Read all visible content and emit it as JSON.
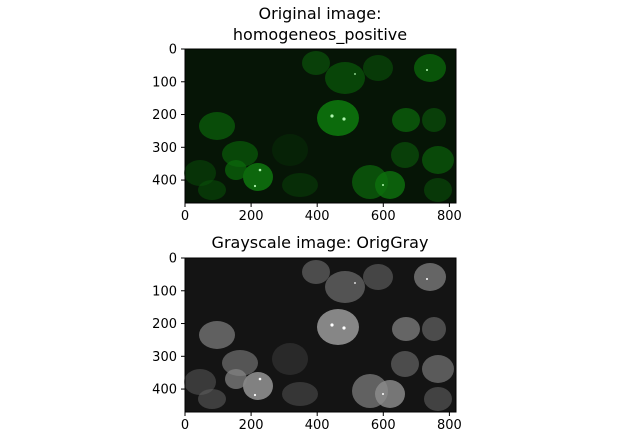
{
  "chart_data": [
    {
      "type": "image",
      "title_lines": [
        "Original image:",
        "homogeneos_positive"
      ],
      "colormap": "green",
      "image_size": [
        820,
        470
      ],
      "xlim": [
        0,
        820
      ],
      "ylim": [
        470,
        0
      ],
      "x_ticks": [
        0,
        200,
        400,
        600,
        800
      ],
      "y_ticks": [
        0,
        100,
        200,
        300,
        400
      ],
      "x_tick_labels": [
        "0",
        "200",
        "400",
        "600",
        "800"
      ],
      "y_tick_labels": [
        "0",
        "100",
        "200",
        "300",
        "400"
      ]
    },
    {
      "type": "image",
      "title_lines": [
        "Grayscale image: OrigGray"
      ],
      "colormap": "gray",
      "image_size": [
        820,
        470
      ],
      "xlim": [
        0,
        820
      ],
      "ylim": [
        470,
        0
      ],
      "x_ticks": [
        0,
        200,
        400,
        600,
        800
      ],
      "y_ticks": [
        0,
        100,
        200,
        300,
        400
      ],
      "x_tick_labels": [
        "0",
        "200",
        "400",
        "600",
        "800"
      ],
      "y_tick_labels": [
        "0",
        "100",
        "200",
        "300",
        "400"
      ]
    }
  ],
  "colors": {
    "green_image_background": "#061506",
    "gray_image_background": "#141414"
  }
}
